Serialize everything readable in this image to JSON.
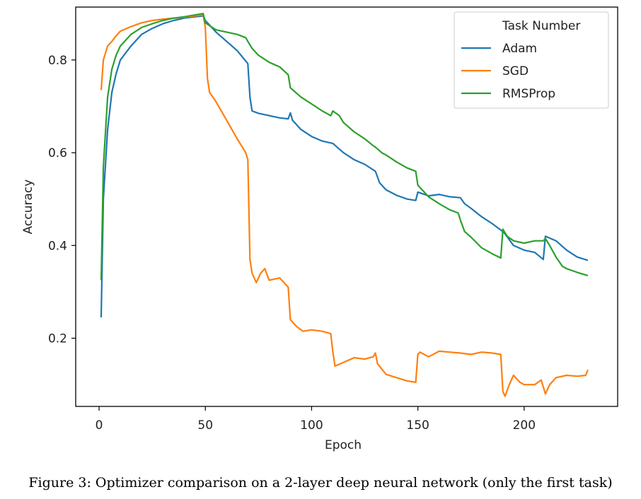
{
  "chart_data": {
    "type": "line",
    "xlabel": "Epoch",
    "ylabel": "Accuracy",
    "xlim": [
      -11,
      244
    ],
    "ylim": [
      0.053,
      0.914
    ],
    "xticks": [
      0,
      50,
      100,
      150,
      200
    ],
    "yticks": [
      0.2,
      0.4,
      0.6,
      0.8
    ],
    "ytick_labels": [
      "0.2",
      "0.4",
      "0.6",
      "0.8"
    ],
    "grid": false,
    "legend": {
      "title": "Task Number",
      "placement": "top-right"
    },
    "series": [
      {
        "name": "Adam",
        "color": "#1f77b4",
        "points": [
          [
            1,
            0.245
          ],
          [
            2,
            0.5
          ],
          [
            4,
            0.65
          ],
          [
            6,
            0.73
          ],
          [
            8,
            0.77
          ],
          [
            10,
            0.8
          ],
          [
            15,
            0.83
          ],
          [
            20,
            0.855
          ],
          [
            25,
            0.868
          ],
          [
            30,
            0.878
          ],
          [
            35,
            0.885
          ],
          [
            40,
            0.89
          ],
          [
            45,
            0.893
          ],
          [
            49,
            0.895
          ],
          [
            50,
            0.885
          ],
          [
            51,
            0.88
          ],
          [
            55,
            0.86
          ],
          [
            60,
            0.84
          ],
          [
            65,
            0.82
          ],
          [
            70,
            0.792
          ],
          [
            71,
            0.72
          ],
          [
            72,
            0.69
          ],
          [
            75,
            0.685
          ],
          [
            80,
            0.68
          ],
          [
            85,
            0.675
          ],
          [
            89,
            0.673
          ],
          [
            90,
            0.686
          ],
          [
            91,
            0.67
          ],
          [
            95,
            0.65
          ],
          [
            100,
            0.635
          ],
          [
            105,
            0.625
          ],
          [
            110,
            0.62
          ],
          [
            115,
            0.6
          ],
          [
            120,
            0.585
          ],
          [
            125,
            0.575
          ],
          [
            130,
            0.56
          ],
          [
            132,
            0.535
          ],
          [
            135,
            0.52
          ],
          [
            140,
            0.508
          ],
          [
            145,
            0.5
          ],
          [
            149,
            0.497
          ],
          [
            150,
            0.515
          ],
          [
            155,
            0.507
          ],
          [
            160,
            0.51
          ],
          [
            165,
            0.505
          ],
          [
            170,
            0.503
          ],
          [
            172,
            0.49
          ],
          [
            175,
            0.48
          ],
          [
            180,
            0.462
          ],
          [
            185,
            0.447
          ],
          [
            190,
            0.43
          ],
          [
            191,
            0.425
          ],
          [
            195,
            0.4
          ],
          [
            200,
            0.39
          ],
          [
            205,
            0.385
          ],
          [
            209,
            0.37
          ],
          [
            210,
            0.42
          ],
          [
            215,
            0.41
          ],
          [
            220,
            0.39
          ],
          [
            225,
            0.375
          ],
          [
            230,
            0.368
          ]
        ]
      },
      {
        "name": "SGD",
        "color": "#ff7f0e",
        "points": [
          [
            1,
            0.735
          ],
          [
            2,
            0.8
          ],
          [
            4,
            0.83
          ],
          [
            6,
            0.84
          ],
          [
            8,
            0.852
          ],
          [
            10,
            0.862
          ],
          [
            15,
            0.872
          ],
          [
            20,
            0.88
          ],
          [
            25,
            0.885
          ],
          [
            30,
            0.888
          ],
          [
            35,
            0.89
          ],
          [
            40,
            0.892
          ],
          [
            45,
            0.895
          ],
          [
            49,
            0.897
          ],
          [
            50,
            0.87
          ],
          [
            51,
            0.76
          ],
          [
            52,
            0.73
          ],
          [
            55,
            0.71
          ],
          [
            60,
            0.67
          ],
          [
            65,
            0.63
          ],
          [
            69,
            0.6
          ],
          [
            70,
            0.585
          ],
          [
            71,
            0.37
          ],
          [
            72,
            0.34
          ],
          [
            74,
            0.32
          ],
          [
            76,
            0.34
          ],
          [
            78,
            0.35
          ],
          [
            80,
            0.325
          ],
          [
            85,
            0.33
          ],
          [
            89,
            0.31
          ],
          [
            90,
            0.24
          ],
          [
            93,
            0.225
          ],
          [
            96,
            0.215
          ],
          [
            100,
            0.218
          ],
          [
            105,
            0.215
          ],
          [
            109,
            0.21
          ],
          [
            110,
            0.17
          ],
          [
            111,
            0.14
          ],
          [
            115,
            0.148
          ],
          [
            120,
            0.158
          ],
          [
            125,
            0.155
          ],
          [
            129,
            0.16
          ],
          [
            130,
            0.168
          ],
          [
            131,
            0.145
          ],
          [
            135,
            0.122
          ],
          [
            140,
            0.115
          ],
          [
            145,
            0.108
          ],
          [
            149,
            0.105
          ],
          [
            150,
            0.165
          ],
          [
            151,
            0.17
          ],
          [
            155,
            0.16
          ],
          [
            160,
            0.172
          ],
          [
            165,
            0.17
          ],
          [
            170,
            0.168
          ],
          [
            175,
            0.165
          ],
          [
            180,
            0.17
          ],
          [
            185,
            0.168
          ],
          [
            189,
            0.165
          ],
          [
            190,
            0.085
          ],
          [
            191,
            0.075
          ],
          [
            193,
            0.1
          ],
          [
            195,
            0.12
          ],
          [
            198,
            0.105
          ],
          [
            200,
            0.1
          ],
          [
            205,
            0.1
          ],
          [
            208,
            0.11
          ],
          [
            210,
            0.08
          ],
          [
            212,
            0.1
          ],
          [
            215,
            0.115
          ],
          [
            220,
            0.12
          ],
          [
            225,
            0.118
          ],
          [
            229,
            0.12
          ],
          [
            230,
            0.132
          ]
        ]
      },
      {
        "name": "RMSProp",
        "color": "#2ca02c",
        "points": [
          [
            1,
            0.325
          ],
          [
            2,
            0.57
          ],
          [
            4,
            0.72
          ],
          [
            6,
            0.78
          ],
          [
            8,
            0.81
          ],
          [
            10,
            0.83
          ],
          [
            15,
            0.855
          ],
          [
            20,
            0.87
          ],
          [
            25,
            0.878
          ],
          [
            30,
            0.885
          ],
          [
            35,
            0.89
          ],
          [
            40,
            0.893
          ],
          [
            45,
            0.897
          ],
          [
            49,
            0.9
          ],
          [
            50,
            0.88
          ],
          [
            55,
            0.865
          ],
          [
            60,
            0.86
          ],
          [
            65,
            0.855
          ],
          [
            69,
            0.848
          ],
          [
            70,
            0.84
          ],
          [
            72,
            0.825
          ],
          [
            75,
            0.81
          ],
          [
            80,
            0.795
          ],
          [
            85,
            0.785
          ],
          [
            89,
            0.768
          ],
          [
            90,
            0.74
          ],
          [
            95,
            0.72
          ],
          [
            100,
            0.705
          ],
          [
            105,
            0.69
          ],
          [
            109,
            0.68
          ],
          [
            110,
            0.69
          ],
          [
            113,
            0.68
          ],
          [
            115,
            0.665
          ],
          [
            120,
            0.645
          ],
          [
            125,
            0.63
          ],
          [
            129,
            0.615
          ],
          [
            130,
            0.612
          ],
          [
            133,
            0.6
          ],
          [
            135,
            0.595
          ],
          [
            140,
            0.58
          ],
          [
            145,
            0.567
          ],
          [
            149,
            0.56
          ],
          [
            150,
            0.53
          ],
          [
            152,
            0.52
          ],
          [
            155,
            0.505
          ],
          [
            160,
            0.49
          ],
          [
            165,
            0.477
          ],
          [
            169,
            0.47
          ],
          [
            170,
            0.455
          ],
          [
            172,
            0.43
          ],
          [
            175,
            0.418
          ],
          [
            180,
            0.395
          ],
          [
            185,
            0.382
          ],
          [
            189,
            0.373
          ],
          [
            190,
            0.435
          ],
          [
            192,
            0.42
          ],
          [
            195,
            0.41
          ],
          [
            200,
            0.405
          ],
          [
            205,
            0.41
          ],
          [
            209,
            0.41
          ],
          [
            210,
            0.415
          ],
          [
            212,
            0.4
          ],
          [
            215,
            0.375
          ],
          [
            218,
            0.355
          ],
          [
            220,
            0.35
          ],
          [
            225,
            0.342
          ],
          [
            230,
            0.335
          ]
        ]
      }
    ]
  },
  "caption": "Figure 3: Optimizer comparison on a 2-layer deep neural network (only the first task)"
}
